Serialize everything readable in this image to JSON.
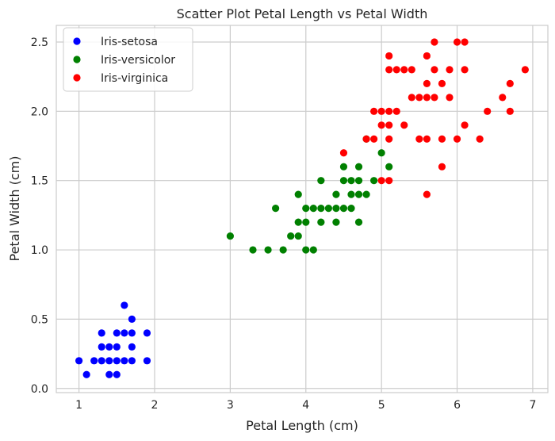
{
  "chart_data": {
    "type": "scatter",
    "title": "Scatter Plot Petal Length vs Petal Width",
    "xlabel": "Petal Length (cm)",
    "ylabel": "Petal Width (cm)",
    "xlim": [
      0.7,
      7.2
    ],
    "ylim": [
      -0.03,
      2.62
    ],
    "xticks": [
      1,
      2,
      3,
      4,
      5,
      6,
      7
    ],
    "yticks": [
      0.0,
      0.5,
      1.0,
      1.5,
      2.0,
      2.5
    ],
    "grid": true,
    "legend_position": "top-left",
    "series": [
      {
        "name": "Iris-setosa",
        "color": "#0000ff",
        "points": [
          [
            1.0,
            0.2
          ],
          [
            1.1,
            0.1
          ],
          [
            1.2,
            0.2
          ],
          [
            1.3,
            0.2
          ],
          [
            1.3,
            0.3
          ],
          [
            1.3,
            0.4
          ],
          [
            1.4,
            0.1
          ],
          [
            1.4,
            0.2
          ],
          [
            1.4,
            0.3
          ],
          [
            1.5,
            0.1
          ],
          [
            1.5,
            0.2
          ],
          [
            1.5,
            0.3
          ],
          [
            1.5,
            0.4
          ],
          [
            1.6,
            0.2
          ],
          [
            1.6,
            0.4
          ],
          [
            1.6,
            0.6
          ],
          [
            1.7,
            0.2
          ],
          [
            1.7,
            0.3
          ],
          [
            1.7,
            0.4
          ],
          [
            1.7,
            0.5
          ],
          [
            1.9,
            0.2
          ],
          [
            1.9,
            0.4
          ]
        ]
      },
      {
        "name": "Iris-versicolor",
        "color": "#008000",
        "points": [
          [
            3.0,
            1.1
          ],
          [
            3.3,
            1.0
          ],
          [
            3.5,
            1.0
          ],
          [
            3.6,
            1.3
          ],
          [
            3.7,
            1.0
          ],
          [
            3.8,
            1.1
          ],
          [
            3.9,
            1.1
          ],
          [
            3.9,
            1.2
          ],
          [
            3.9,
            1.4
          ],
          [
            4.0,
            1.0
          ],
          [
            4.0,
            1.2
          ],
          [
            4.0,
            1.3
          ],
          [
            4.1,
            1.0
          ],
          [
            4.1,
            1.3
          ],
          [
            4.2,
            1.2
          ],
          [
            4.2,
            1.3
          ],
          [
            4.2,
            1.5
          ],
          [
            4.3,
            1.3
          ],
          [
            4.4,
            1.2
          ],
          [
            4.4,
            1.3
          ],
          [
            4.4,
            1.4
          ],
          [
            4.5,
            1.3
          ],
          [
            4.5,
            1.5
          ],
          [
            4.5,
            1.6
          ],
          [
            4.6,
            1.3
          ],
          [
            4.6,
            1.4
          ],
          [
            4.6,
            1.5
          ],
          [
            4.7,
            1.2
          ],
          [
            4.7,
            1.4
          ],
          [
            4.7,
            1.5
          ],
          [
            4.7,
            1.6
          ],
          [
            4.8,
            1.4
          ],
          [
            4.8,
            1.8
          ],
          [
            4.9,
            1.5
          ],
          [
            5.0,
            1.7
          ],
          [
            5.1,
            1.6
          ]
        ]
      },
      {
        "name": "Iris-virginica",
        "color": "#ff0000",
        "points": [
          [
            4.5,
            1.7
          ],
          [
            4.8,
            1.8
          ],
          [
            4.9,
            1.8
          ],
          [
            4.9,
            2.0
          ],
          [
            5.0,
            1.5
          ],
          [
            5.0,
            1.9
          ],
          [
            5.0,
            2.0
          ],
          [
            5.1,
            1.5
          ],
          [
            5.1,
            1.8
          ],
          [
            5.1,
            1.9
          ],
          [
            5.1,
            2.0
          ],
          [
            5.1,
            2.3
          ],
          [
            5.1,
            2.4
          ],
          [
            5.2,
            2.0
          ],
          [
            5.2,
            2.3
          ],
          [
            5.3,
            1.9
          ],
          [
            5.3,
            2.3
          ],
          [
            5.4,
            2.1
          ],
          [
            5.4,
            2.3
          ],
          [
            5.5,
            1.8
          ],
          [
            5.5,
            2.1
          ],
          [
            5.6,
            1.4
          ],
          [
            5.6,
            1.8
          ],
          [
            5.6,
            2.1
          ],
          [
            5.6,
            2.2
          ],
          [
            5.6,
            2.4
          ],
          [
            5.7,
            2.1
          ],
          [
            5.7,
            2.3
          ],
          [
            5.7,
            2.5
          ],
          [
            5.8,
            1.6
          ],
          [
            5.8,
            1.8
          ],
          [
            5.8,
            2.2
          ],
          [
            5.9,
            2.1
          ],
          [
            5.9,
            2.3
          ],
          [
            6.0,
            1.8
          ],
          [
            6.0,
            2.5
          ],
          [
            6.1,
            1.9
          ],
          [
            6.1,
            2.3
          ],
          [
            6.1,
            2.5
          ],
          [
            6.3,
            1.8
          ],
          [
            6.4,
            2.0
          ],
          [
            6.6,
            2.1
          ],
          [
            6.7,
            2.0
          ],
          [
            6.7,
            2.2
          ],
          [
            6.9,
            2.3
          ]
        ]
      }
    ]
  }
}
